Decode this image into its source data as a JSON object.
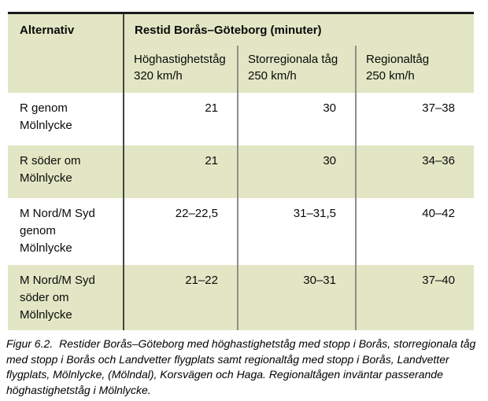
{
  "table": {
    "corner_header": "Alternativ",
    "group_header": "Restid Borås–Göteborg (minuter)",
    "column_headers": [
      "Höghastighetståg\n320 km/h",
      "Storregionala tåg\n250 km/h",
      "Regionaltåg\n250 km/h"
    ],
    "rows": [
      {
        "alternative": "R genom\nMölnlycke",
        "values": [
          "21",
          "30",
          "37–38"
        ]
      },
      {
        "alternative": "R söder om\nMölnlycke",
        "values": [
          "21",
          "30",
          "34–36"
        ]
      },
      {
        "alternative": "M Nord/M Syd\ngenom\nMölnlycke",
        "values": [
          "22–22,5",
          "31–31,5",
          "40–42"
        ]
      },
      {
        "alternative": "M Nord/M Syd\nsöder om\nMölnlycke",
        "values": [
          "21–22",
          "30–31",
          "37–40"
        ]
      }
    ]
  },
  "caption": {
    "label": "Figur 6.2.",
    "text": "Restider Borås–Göteborg med höghastighetståg med stopp i Borås, storregionala tåg med stopp i Borås och Landvetter flygplats samt regionaltåg med stopp i Borås, Landvetter flygplats, Mölnlycke, (Mölndal), Korsvägen och Haga. Regionaltågen inväntar passerande höghastighetståg i Mölnlycke."
  },
  "colors": {
    "band_green": "#e2e6c4",
    "top_border": "#1a1a1a",
    "divider_dark": "#45453f",
    "divider_gray": "#8f8f88"
  }
}
